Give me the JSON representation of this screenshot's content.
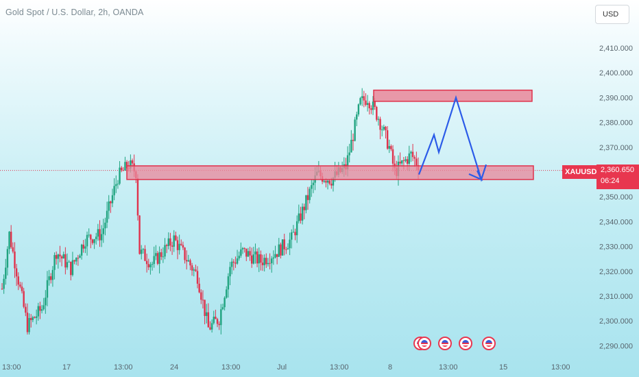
{
  "header": {
    "title": "Gold Spot / U.S. Dollar, 2h, OANDA",
    "currency_button": "USD"
  },
  "price_tag": {
    "symbol": "XAUUSD",
    "price": "2,360.650",
    "countdown": "06:24"
  },
  "colors": {
    "up": "#1fa37f",
    "down": "#e0314b",
    "zone_fill": "#e98799",
    "zone_border": "#e0314b",
    "projection": "#2b5be8",
    "background": "#c3edf4"
  },
  "icons": [
    "us-flag-event-icon",
    "us-flag-event-icon",
    "us-flag-event-icon",
    "us-flag-event-icon"
  ],
  "chart_data": {
    "type": "candlestick",
    "title": "Gold Spot / U.S. Dollar, 2h, OANDA",
    "symbol": "XAUUSD",
    "y_ticks": [
      "2,410.000",
      "2,400.000",
      "2,390.000",
      "2,380.000",
      "2,370.000",
      "2,360.000",
      "2,350.000",
      "2,340.000",
      "2,330.000",
      "2,320.000",
      "2,310.000",
      "2,300.000",
      "2,290.000"
    ],
    "x_ticks": [
      "13:00",
      "17",
      "13:00",
      "24",
      "13:00",
      "Jul",
      "13:00",
      "8",
      "13:00",
      "15",
      "13:00"
    ],
    "ylim": [
      2287,
      2416
    ],
    "last_price": 2360.65,
    "trend_anchors": [
      [
        0,
        2313
      ],
      [
        4,
        2335
      ],
      [
        14,
        2298
      ],
      [
        22,
        2305
      ],
      [
        30,
        2328
      ],
      [
        38,
        2321
      ],
      [
        46,
        2333
      ],
      [
        55,
        2335
      ],
      [
        64,
        2358
      ],
      [
        70,
        2363
      ],
      [
        74,
        2360
      ],
      [
        76,
        2328
      ],
      [
        83,
        2323
      ],
      [
        95,
        2333
      ],
      [
        108,
        2318
      ],
      [
        114,
        2297
      ],
      [
        120,
        2301
      ],
      [
        126,
        2322
      ],
      [
        133,
        2328
      ],
      [
        143,
        2324
      ],
      [
        152,
        2328
      ],
      [
        160,
        2333
      ],
      [
        168,
        2348
      ],
      [
        174,
        2359
      ],
      [
        182,
        2357
      ],
      [
        190,
        2362
      ],
      [
        198,
        2388
      ],
      [
        202,
        2390
      ],
      [
        208,
        2382
      ],
      [
        214,
        2370
      ],
      [
        217,
        2360
      ],
      [
        222,
        2364
      ],
      [
        226,
        2367
      ],
      [
        230,
        2363
      ]
    ],
    "resistance_zone": [
      2388.5,
      2393
    ],
    "support_zone": [
      2357,
      2362.5
    ],
    "projection_path": [
      [
        0,
        2359
      ],
      [
        1,
        2375
      ],
      [
        2,
        2368
      ],
      [
        3,
        2390
      ],
      [
        4,
        2357
      ],
      [
        5,
        2363
      ]
    ]
  }
}
